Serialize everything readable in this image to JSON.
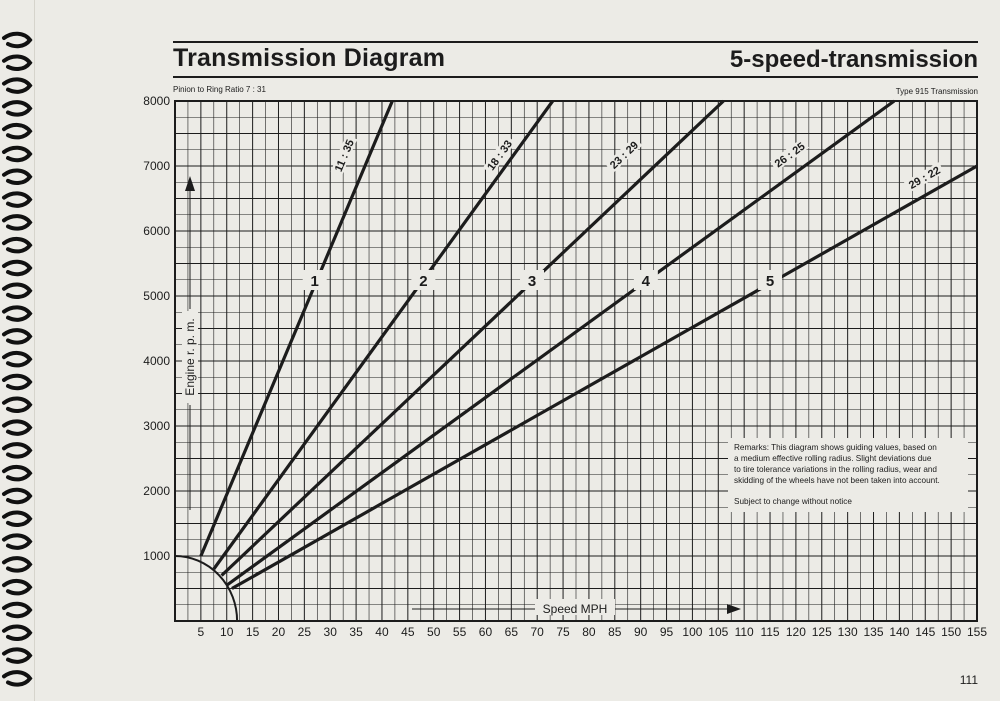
{
  "title_left": "Transmission Diagram",
  "title_right": "5-speed-transmission",
  "subtitle_left": "Pinion to Ring Ratio 7 : 31",
  "subtitle_right": "Type 915 Transmission",
  "page_number": "111",
  "chart_data": {
    "type": "line",
    "xlabel": "Speed MPH",
    "ylabel": "Engine r. p. m.",
    "xlim": [
      0,
      155
    ],
    "ylim": [
      0,
      8000
    ],
    "x_ticks": [
      "5",
      "10",
      "15",
      "20",
      "25",
      "30",
      "35",
      "40",
      "45",
      "50",
      "55",
      "60",
      "65",
      "70",
      "75",
      "80",
      "85",
      "90",
      "95",
      "100",
      "105",
      "110",
      "115",
      "120",
      "125",
      "130",
      "135",
      "140",
      "145",
      "150",
      "155"
    ],
    "y_ticks": [
      "1000",
      "2000",
      "3000",
      "4000",
      "5000",
      "6000",
      "7000",
      "8000"
    ],
    "grid": true,
    "series": [
      {
        "gear": "1",
        "ratio": "11 : 35",
        "x": [
          5,
          42
        ],
        "y": [
          1000,
          8000
        ]
      },
      {
        "gear": "2",
        "ratio": "18 : 33",
        "x": [
          7.5,
          73
        ],
        "y": [
          800,
          8000
        ]
      },
      {
        "gear": "3",
        "ratio": "23 : 29",
        "x": [
          9,
          106
        ],
        "y": [
          700,
          8000
        ]
      },
      {
        "gear": "4",
        "ratio": "26 : 25",
        "x": [
          10,
          139
        ],
        "y": [
          550,
          8000
        ]
      },
      {
        "gear": "5",
        "ratio": "29 : 22",
        "x": [
          11,
          155
        ],
        "y": [
          500,
          7000
        ]
      }
    ],
    "remarks": [
      "Remarks: This diagram shows guiding values, based on",
      "a medium effective rolling radius. Slight deviations due",
      "to tire tolerance variations in the rolling radius, wear and",
      "skidding of the wheels have not been taken into account."
    ],
    "notice": "Subject to change without notice"
  }
}
